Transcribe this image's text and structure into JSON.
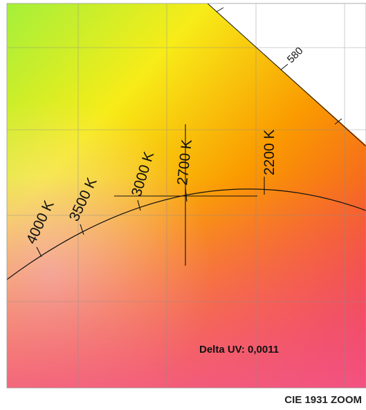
{
  "diagram": {
    "colors": {
      "green": "#a4f03a",
      "yellow": "#f7ec18",
      "orange": "#fa9a00",
      "deep_orange": "#f86c1e",
      "light_pink": "#f6dcd0",
      "pink": "#f25a8a",
      "red": "#f0264a",
      "grid": "#8c8c8c",
      "curve": "#111111"
    },
    "cct_labels": [
      {
        "text": "4000 K"
      },
      {
        "text": "3500 K"
      },
      {
        "text": "3000 K"
      },
      {
        "text": "2700 K"
      },
      {
        "text": "2200 K"
      }
    ],
    "wavelength_label": "580",
    "delta_uv": "Delta UV: 0,0011",
    "caption": "CIE 1931 ZOOM"
  }
}
